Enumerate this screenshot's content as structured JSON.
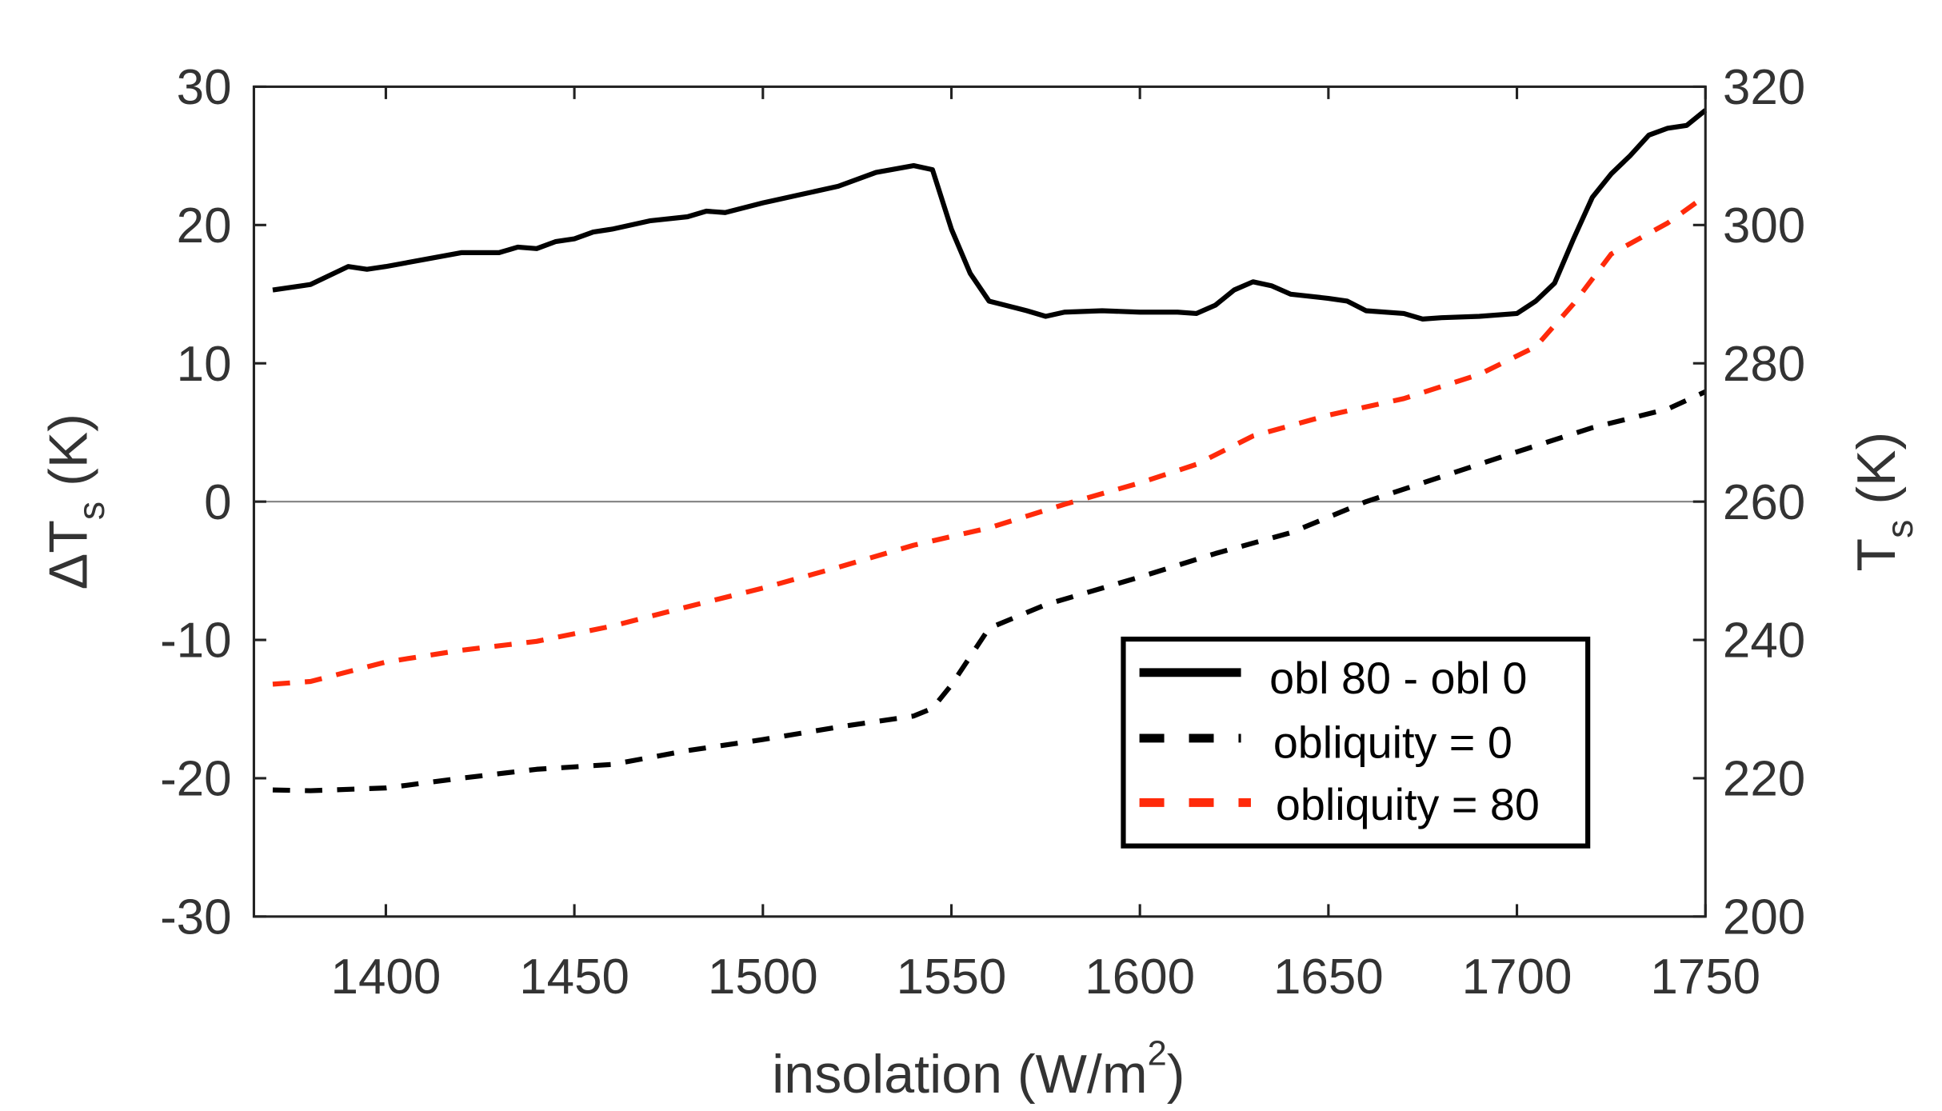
{
  "chart_data": {
    "type": "line",
    "xlabel": {
      "main": "insolation (W/m",
      "sup": "2",
      "end": ")"
    },
    "ylabel_left": {
      "main": "ΔT",
      "sub": "s",
      "end": " (K)"
    },
    "ylabel_right": {
      "main": "T",
      "sub": "s",
      "end": " (K)"
    },
    "xlim": [
      1365,
      1750
    ],
    "ylim_left": [
      -30,
      30
    ],
    "ylim_right": [
      200,
      320
    ],
    "xticks": [
      "1400",
      "1450",
      "1500",
      "1550",
      "1600",
      "1650",
      "1700",
      "1750"
    ],
    "yticks_left": [
      "-30",
      "-20",
      "-10",
      "0",
      "10",
      "20",
      "30"
    ],
    "yticks_right": [
      "200",
      "220",
      "240",
      "260",
      "280",
      "300",
      "320"
    ],
    "zero_line": true,
    "grid": false,
    "legend_position": "lower-right",
    "series": [
      {
        "name": "obl 80 - obl 0",
        "axis": "left",
        "style": "solid",
        "color": "#000000",
        "x": [
          1370,
          1380,
          1390,
          1395,
          1400,
          1410,
          1420,
          1425,
          1430,
          1435,
          1440,
          1445,
          1450,
          1455,
          1460,
          1470,
          1480,
          1485,
          1490,
          1500,
          1510,
          1520,
          1530,
          1540,
          1545,
          1550,
          1555,
          1560,
          1570,
          1575,
          1580,
          1590,
          1600,
          1610,
          1615,
          1620,
          1625,
          1630,
          1635,
          1640,
          1650,
          1655,
          1660,
          1670,
          1675,
          1680,
          1690,
          1700,
          1705,
          1710,
          1715,
          1720,
          1725,
          1730,
          1735,
          1740,
          1745,
          1750
        ],
        "y": [
          15.3,
          15.7,
          17.0,
          16.8,
          17.0,
          17.5,
          18.0,
          18.0,
          18.0,
          18.4,
          18.3,
          18.8,
          19.0,
          19.5,
          19.7,
          20.3,
          20.6,
          21.0,
          20.9,
          21.6,
          22.2,
          22.8,
          23.8,
          24.3,
          24.0,
          19.7,
          16.5,
          14.5,
          13.8,
          13.4,
          13.7,
          13.8,
          13.7,
          13.7,
          13.6,
          14.2,
          15.3,
          15.9,
          15.6,
          15.0,
          14.7,
          14.5,
          13.8,
          13.6,
          13.2,
          13.3,
          13.4,
          13.6,
          14.5,
          15.8,
          19.0,
          22.0,
          23.7,
          25.0,
          26.5,
          27.0,
          27.2,
          28.3
        ]
      },
      {
        "name": "obliquity = 0",
        "axis": "right",
        "style": "dashed",
        "color": "#000000",
        "x": [
          1370,
          1380,
          1400,
          1420,
          1440,
          1460,
          1480,
          1500,
          1520,
          1540,
          1545,
          1550,
          1555,
          1560,
          1575,
          1600,
          1620,
          1640,
          1660,
          1680,
          1700,
          1720,
          1740,
          1750
        ],
        "y": [
          218.3,
          218.2,
          218.6,
          220.0,
          221.3,
          222.0,
          224.0,
          225.6,
          227.4,
          229.0,
          230.1,
          233.5,
          237.6,
          241.7,
          245.1,
          249.1,
          252.5,
          255.5,
          260.0,
          263.6,
          267.2,
          270.7,
          273.4,
          275.9
        ]
      },
      {
        "name": "obliquity = 80",
        "axis": "right",
        "style": "dashed",
        "color": "#ff2a0a",
        "x": [
          1370,
          1380,
          1400,
          1420,
          1440,
          1460,
          1480,
          1500,
          1520,
          1540,
          1560,
          1580,
          1600,
          1615,
          1630,
          1650,
          1670,
          1690,
          1705,
          1715,
          1725,
          1740,
          1750
        ],
        "y": [
          233.6,
          234.0,
          236.8,
          238.5,
          239.8,
          242.0,
          244.8,
          247.5,
          250.5,
          253.7,
          256.2,
          259.6,
          262.7,
          265.4,
          269.5,
          272.5,
          274.9,
          278.4,
          282.4,
          288.6,
          295.8,
          300.3,
          304.2
        ]
      }
    ]
  }
}
